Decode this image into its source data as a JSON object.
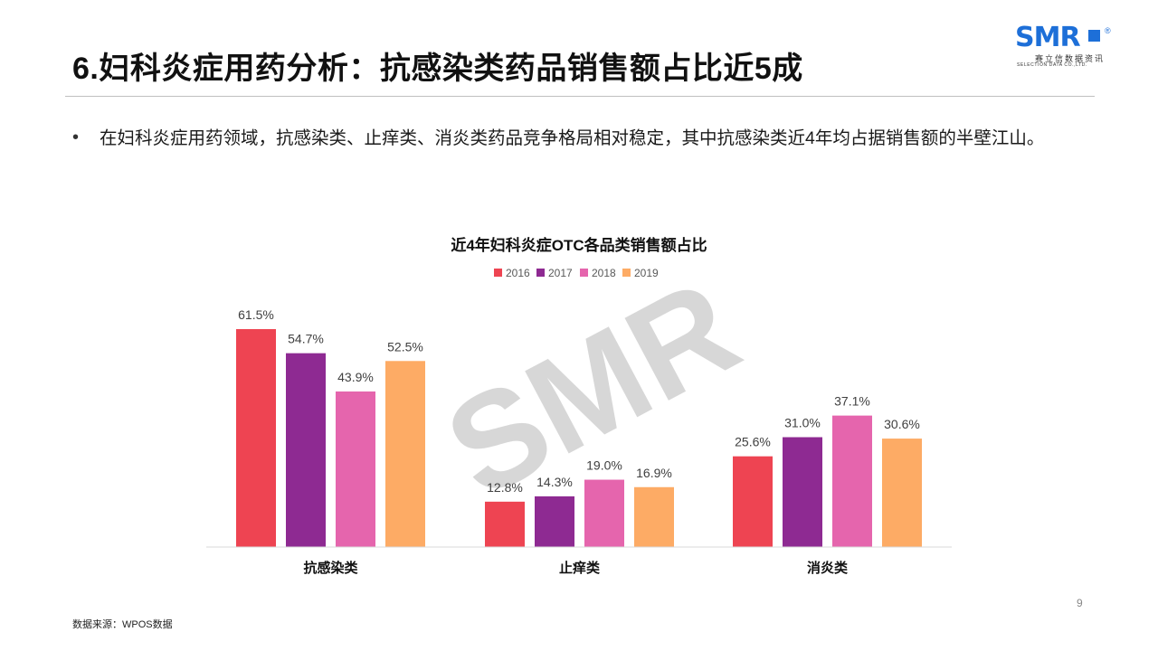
{
  "header": {
    "title": "6.妇科炎症用药分析：抗感染类药品销售额占比近5成",
    "logo": {
      "text": "SMR",
      "registered": "®",
      "cn": "赛立信数据资讯",
      "en": "SELECTION DATA CO.,LTD."
    }
  },
  "bullet": {
    "text": "在妇科炎症用药领域，抗感染类、止痒类、消炎类药品竞争格局相对稳定，其中抗感染类近4年均占据销售额的半壁江山。"
  },
  "watermark": "SMR",
  "chart_data": {
    "type": "bar",
    "title": "近4年妇科炎症OTC各品类销售额占比",
    "categories": [
      "抗感染类",
      "止痒类",
      "消炎类"
    ],
    "series": [
      {
        "name": "2016",
        "color": "#ee4452",
        "values": [
          61.5,
          12.8,
          25.6
        ],
        "labels": [
          "61.5%",
          "12.8%",
          "25.6%"
        ]
      },
      {
        "name": "2017",
        "color": "#8e2a92",
        "values": [
          54.7,
          14.3,
          31.0
        ],
        "labels": [
          "54.7%",
          "14.3%",
          "31.0%"
        ]
      },
      {
        "name": "2018",
        "color": "#e565ad",
        "values": [
          43.9,
          19.0,
          37.1
        ],
        "labels": [
          "43.9%",
          "19.0%",
          "37.1%"
        ]
      },
      {
        "name": "2019",
        "color": "#fdab65",
        "values": [
          52.5,
          16.9,
          30.6
        ],
        "labels": [
          "52.5%",
          "16.9%",
          "30.6%"
        ]
      }
    ],
    "ylim": [
      0,
      61.5
    ],
    "legend": "top",
    "grid": false
  },
  "footer": {
    "source": "数据来源：WPOS数据",
    "page": "9"
  }
}
